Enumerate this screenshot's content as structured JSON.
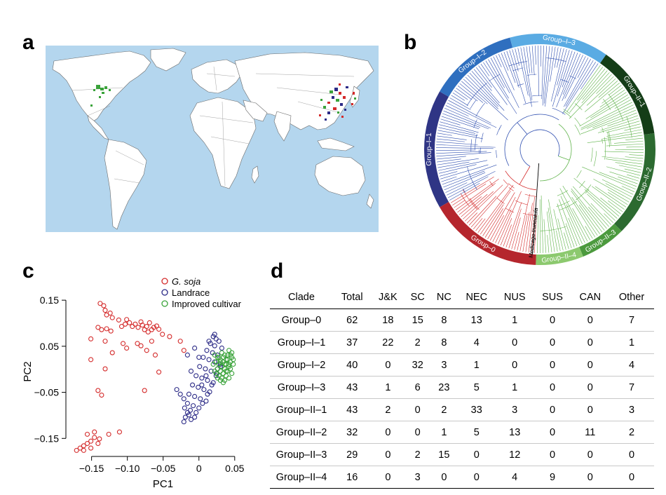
{
  "panels": {
    "a": "a",
    "b": "b",
    "c": "c",
    "d": "d"
  },
  "colors": {
    "gsoja": "#d42a2a",
    "landrace": "#2b2a86",
    "improved": "#3aa33a",
    "ocean": "#b4d6ee",
    "land": "#ffffff",
    "group0": "#b5262d",
    "group1_1": "#2f3585",
    "group1_2": "#2f6fbf",
    "group1_3": "#5aabe3",
    "group2_1": "#143d17",
    "group2_2": "#2c6a30",
    "group2_3": "#4c9a3e",
    "group2_4": "#8cc96e"
  },
  "tree": {
    "groups": [
      "Group–0",
      "Group–I–1",
      "Group–I–2",
      "Group–I–3",
      "Group–II–1",
      "Group–II–2",
      "Group–II–3",
      "Group–II–4"
    ],
    "outgroup": "Medicago truncatula"
  },
  "chart_data": {
    "type": "scatter",
    "xlabel": "PC1",
    "ylabel": "PC2",
    "xlim": [
      -0.18,
      0.06
    ],
    "ylim": [
      -0.18,
      0.17
    ],
    "xticks": [
      "−0.15",
      "−0.10",
      "−0.05",
      "0",
      "0.05"
    ],
    "yticks": [
      "0.15",
      "0.05",
      "−0.05",
      "−0.15"
    ],
    "legend_position": "top-right",
    "legend": [
      "G. soja",
      "Landrace",
      "Improved cultivar"
    ],
    "series": [
      {
        "name": "G. soja",
        "points": [
          [
            -0.138,
            0.143
          ],
          [
            -0.133,
            0.138
          ],
          [
            -0.131,
            0.128
          ],
          [
            -0.129,
            0.118
          ],
          [
            -0.124,
            0.122
          ],
          [
            -0.121,
            0.112
          ],
          [
            -0.112,
            0.107
          ],
          [
            -0.108,
            0.093
          ],
          [
            -0.103,
            0.098
          ],
          [
            -0.101,
            0.108
          ],
          [
            -0.097,
            0.101
          ],
          [
            -0.093,
            0.093
          ],
          [
            -0.089,
            0.098
          ],
          [
            -0.085,
            0.091
          ],
          [
            -0.081,
            0.103
          ],
          [
            -0.079,
            0.096
          ],
          [
            -0.076,
            0.086
          ],
          [
            -0.073,
            0.093
          ],
          [
            -0.069,
            0.101
          ],
          [
            -0.066,
            0.086
          ],
          [
            -0.063,
            0.091
          ],
          [
            -0.059,
            0.094
          ],
          [
            -0.056,
            0.087
          ],
          [
            -0.141,
            0.091
          ],
          [
            -0.136,
            0.086
          ],
          [
            -0.129,
            0.088
          ],
          [
            -0.123,
            0.083
          ],
          [
            -0.071,
            0.081
          ],
          [
            -0.066,
            0.061
          ],
          [
            -0.051,
            0.076
          ],
          [
            -0.041,
            0.071
          ],
          [
            -0.026,
            0.061
          ],
          [
            -0.151,
            0.066
          ],
          [
            -0.131,
            0.061
          ],
          [
            -0.106,
            0.056
          ],
          [
            -0.101,
            0.046
          ],
          [
            -0.086,
            0.056
          ],
          [
            -0.081,
            0.051
          ],
          [
            -0.073,
            0.041
          ],
          [
            -0.061,
            0.031
          ],
          [
            -0.056,
            -0.006
          ],
          [
            -0.021,
            0.041
          ],
          [
            -0.121,
            0.036
          ],
          [
            -0.151,
            0.021
          ],
          [
            -0.141,
            -0.046
          ],
          [
            -0.136,
            -0.056
          ],
          [
            -0.076,
            -0.046
          ],
          [
            -0.131,
            0.001
          ],
          [
            -0.126,
            -0.141
          ],
          [
            -0.111,
            -0.136
          ],
          [
            -0.146,
            -0.148
          ],
          [
            -0.139,
            -0.151
          ],
          [
            -0.151,
            -0.156
          ],
          [
            -0.156,
            -0.161
          ],
          [
            -0.161,
            -0.166
          ],
          [
            -0.166,
            -0.171
          ],
          [
            -0.161,
            -0.176
          ],
          [
            -0.151,
            -0.171
          ],
          [
            -0.141,
            -0.161
          ],
          [
            -0.156,
            -0.141
          ],
          [
            -0.146,
            -0.136
          ],
          [
            -0.171,
            -0.176
          ]
        ]
      },
      {
        "name": "Landrace",
        "points": [
          [
            0.02,
            0.071
          ],
          [
            0.024,
            0.066
          ],
          [
            0.028,
            0.061
          ],
          [
            0.016,
            0.056
          ],
          [
            0.022,
            0.051
          ],
          [
            0.032,
            0.046
          ],
          [
            0.011,
            0.041
          ],
          [
            0.019,
            0.036
          ],
          [
            0.026,
            0.031
          ],
          [
            0.006,
            0.026
          ],
          [
            0.014,
            0.021
          ],
          [
            0.022,
            0.016
          ],
          [
            0.03,
            0.011
          ],
          [
            0.001,
            0.006
          ],
          [
            0.009,
            0.001
          ],
          [
            0.017,
            -0.004
          ],
          [
            0.025,
            -0.009
          ],
          [
            -0.004,
            -0.014
          ],
          [
            0.004,
            -0.019
          ],
          [
            0.012,
            -0.024
          ],
          [
            0.02,
            -0.029
          ],
          [
            -0.009,
            -0.034
          ],
          [
            -0.001,
            -0.039
          ],
          [
            0.007,
            -0.044
          ],
          [
            0.015,
            -0.049
          ],
          [
            -0.014,
            -0.054
          ],
          [
            -0.006,
            -0.059
          ],
          [
            0.002,
            -0.064
          ],
          [
            0.01,
            -0.069
          ],
          [
            -0.016,
            -0.074
          ],
          [
            -0.008,
            -0.079
          ],
          [
            0.0,
            -0.084
          ],
          [
            -0.012,
            -0.089
          ],
          [
            -0.004,
            -0.094
          ],
          [
            -0.014,
            -0.099
          ],
          [
            -0.006,
            -0.104
          ],
          [
            -0.011,
            -0.109
          ],
          [
            -0.016,
            -0.094
          ],
          [
            0.005,
            -0.074
          ],
          [
            0.012,
            -0.054
          ],
          [
            0.018,
            -0.034
          ],
          [
            0.024,
            -0.014
          ],
          [
            0.03,
            0.006
          ],
          [
            -0.02,
            -0.084
          ],
          [
            -0.019,
            -0.104
          ],
          [
            -0.021,
            -0.114
          ],
          [
            -0.021,
            -0.064
          ],
          [
            -0.026,
            -0.054
          ],
          [
            -0.031,
            -0.044
          ],
          [
            -0.011,
            -0.004
          ],
          [
            -0.016,
            0.031
          ],
          [
            -0.006,
            0.046
          ],
          [
            0.0,
            0.026
          ],
          [
            0.014,
            0.061
          ],
          [
            0.022,
            0.076
          ],
          [
            0.026,
            0.001
          ],
          [
            0.01,
            -0.014
          ],
          [
            0.004,
            -0.034
          ]
        ]
      },
      {
        "name": "Improved cultivar",
        "points": [
          [
            0.022,
            0.031
          ],
          [
            0.026,
            0.026
          ],
          [
            0.03,
            0.021
          ],
          [
            0.034,
            0.016
          ],
          [
            0.038,
            0.011
          ],
          [
            0.042,
            0.006
          ],
          [
            0.024,
            0.016
          ],
          [
            0.028,
            0.011
          ],
          [
            0.032,
            0.006
          ],
          [
            0.036,
            0.001
          ],
          [
            0.04,
            -0.004
          ],
          [
            0.026,
            0.001
          ],
          [
            0.03,
            -0.004
          ],
          [
            0.034,
            -0.009
          ],
          [
            0.038,
            -0.014
          ],
          [
            0.042,
            -0.019
          ],
          [
            0.024,
            -0.009
          ],
          [
            0.028,
            -0.014
          ],
          [
            0.032,
            -0.019
          ],
          [
            0.036,
            -0.024
          ],
          [
            0.04,
            0.021
          ],
          [
            0.044,
            0.016
          ],
          [
            0.046,
            0.026
          ],
          [
            0.036,
            0.031
          ],
          [
            0.032,
            0.036
          ],
          [
            0.04,
            0.031
          ],
          [
            0.044,
            0.001
          ],
          [
            0.046,
            -0.009
          ],
          [
            0.034,
            0.026
          ],
          [
            0.028,
            0.026
          ],
          [
            0.038,
            0.021
          ],
          [
            0.042,
            0.011
          ],
          [
            0.03,
            0.016
          ],
          [
            0.036,
            0.011
          ],
          [
            0.026,
            -0.019
          ],
          [
            0.03,
            -0.024
          ],
          [
            0.034,
            -0.029
          ],
          [
            0.022,
            -0.004
          ],
          [
            0.02,
            0.011
          ],
          [
            0.044,
            0.031
          ],
          [
            0.048,
            0.021
          ],
          [
            0.048,
            0.011
          ],
          [
            0.046,
            0.036
          ],
          [
            0.042,
            0.041
          ],
          [
            0.038,
            -0.004
          ]
        ]
      }
    ]
  },
  "table": {
    "headers": [
      "Clade",
      "Total",
      "J&K",
      "SC",
      "NC",
      "NEC",
      "NUS",
      "SUS",
      "CAN",
      "Other"
    ],
    "rows": [
      [
        "Group–0",
        "62",
        "18",
        "15",
        "8",
        "13",
        "1",
        "0",
        "0",
        "7"
      ],
      [
        "Group–I–1",
        "37",
        "22",
        "2",
        "8",
        "4",
        "0",
        "0",
        "0",
        "1"
      ],
      [
        "Group–I–2",
        "40",
        "0",
        "32",
        "3",
        "1",
        "0",
        "0",
        "0",
        "4"
      ],
      [
        "Group–I–3",
        "43",
        "1",
        "6",
        "23",
        "5",
        "1",
        "0",
        "0",
        "7"
      ],
      [
        "Group–II–1",
        "43",
        "2",
        "0",
        "2",
        "33",
        "3",
        "0",
        "0",
        "3"
      ],
      [
        "Group–II–2",
        "32",
        "0",
        "0",
        "1",
        "5",
        "13",
        "0",
        "11",
        "2"
      ],
      [
        "Group–II–3",
        "29",
        "0",
        "2",
        "15",
        "0",
        "12",
        "0",
        "0",
        "0"
      ],
      [
        "Group–II–4",
        "16",
        "0",
        "3",
        "0",
        "0",
        "4",
        "9",
        "0",
        "0"
      ]
    ]
  }
}
